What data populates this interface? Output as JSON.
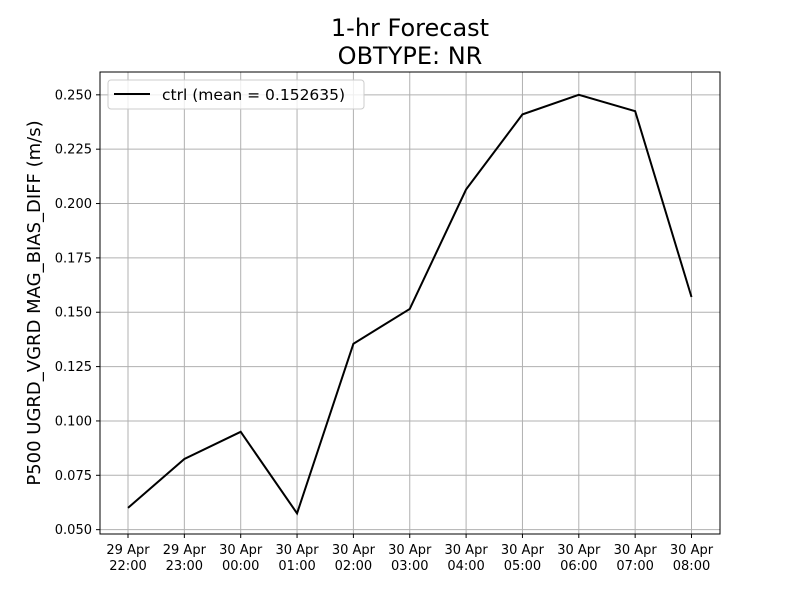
{
  "chart_data": {
    "type": "line",
    "title": "1-hr Forecast",
    "subtitle": "OBTYPE: NR",
    "xlabel": "",
    "ylabel": "P500 UGRD_VGRD MAG_BIAS_DIFF (m/s)",
    "categories": [
      [
        "29 Apr",
        "22:00"
      ],
      [
        "29 Apr",
        "23:00"
      ],
      [
        "30 Apr",
        "00:00"
      ],
      [
        "30 Apr",
        "01:00"
      ],
      [
        "30 Apr",
        "02:00"
      ],
      [
        "30 Apr",
        "03:00"
      ],
      [
        "30 Apr",
        "04:00"
      ],
      [
        "30 Apr",
        "05:00"
      ],
      [
        "30 Apr",
        "06:00"
      ],
      [
        "30 Apr",
        "07:00"
      ],
      [
        "30 Apr",
        "08:00"
      ]
    ],
    "series": [
      {
        "name": "ctrl (mean = 0.152635)",
        "color": "#000000",
        "values": [
          0.06,
          0.0825,
          0.095,
          0.0575,
          0.1355,
          0.1515,
          0.2065,
          0.241,
          0.25,
          0.2425,
          0.157
        ]
      }
    ],
    "ylim": [
      0.048,
      0.2605
    ],
    "yticks": [
      0.05,
      0.075,
      0.1,
      0.125,
      0.15,
      0.175,
      0.2,
      0.225,
      0.25
    ],
    "ytick_labels": [
      "0.050",
      "0.075",
      "0.100",
      "0.125",
      "0.150",
      "0.175",
      "0.200",
      "0.225",
      "0.250"
    ],
    "grid": true,
    "legend_position": "upper-left"
  }
}
